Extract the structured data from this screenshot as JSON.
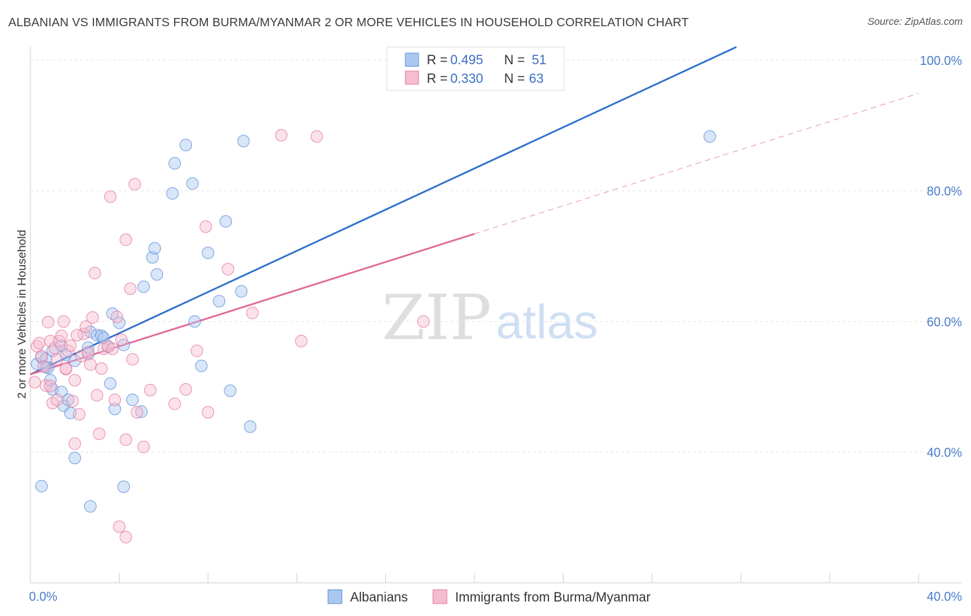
{
  "title": "ALBANIAN VS IMMIGRANTS FROM BURMA/MYANMAR 2 OR MORE VEHICLES IN HOUSEHOLD CORRELATION CHART",
  "source": "Source: ZipAtlas.com",
  "watermark": {
    "zip": "ZIP",
    "atlas": "atlas"
  },
  "legend": {
    "r_label": "R =",
    "n_label": "N =",
    "rows": [
      {
        "r": "0.495",
        "n": "51"
      },
      {
        "r": "0.330",
        "n": "63"
      }
    ]
  },
  "colors": {
    "blue_fill": "#aac8ef",
    "blue_stroke": "#5b8fd8",
    "blue_line": "#2d6fcc",
    "pink_fill": "#f6bcd0",
    "pink_stroke": "#e17ba0",
    "pink_line": "#e06898",
    "grid": "#e6e6e6",
    "tick_text": "#4a7cc9"
  },
  "chart_data": {
    "type": "scatter",
    "title": "ALBANIAN VS IMMIGRANTS FROM BURMA/MYANMAR 2 OR MORE VEHICLES IN HOUSEHOLD CORRELATION CHART",
    "xlabel": "",
    "ylabel": "2 or more Vehicles in Household",
    "xlim": [
      0,
      40
    ],
    "ylim": [
      20,
      102
    ],
    "x_tick_labels": [
      "0.0%",
      "40.0%"
    ],
    "y_ticks": [
      40,
      60,
      80,
      100
    ],
    "y_tick_labels": [
      "40.0%",
      "60.0%",
      "80.0%",
      "100.0%"
    ],
    "grid": true,
    "legend_position": "top-center",
    "series": [
      {
        "name": "Albanians",
        "color": "blue",
        "r": 0.495,
        "n": 51,
        "points": [
          [
            0.3,
            53.5
          ],
          [
            0.5,
            54.5
          ],
          [
            0.7,
            54.3
          ],
          [
            0.8,
            52.9
          ],
          [
            0.9,
            51.0
          ],
          [
            1.0,
            49.6
          ],
          [
            1.0,
            55.5
          ],
          [
            1.4,
            49.2
          ],
          [
            1.4,
            56.3
          ],
          [
            1.5,
            47.1
          ],
          [
            1.6,
            54.9
          ],
          [
            1.7,
            48.0
          ],
          [
            1.8,
            46.0
          ],
          [
            2.0,
            39.1
          ],
          [
            2.0,
            54.0
          ],
          [
            2.6,
            55.0
          ],
          [
            2.6,
            56.0
          ],
          [
            2.7,
            58.4
          ],
          [
            3.0,
            57.9
          ],
          [
            3.2,
            57.8
          ],
          [
            3.5,
            56.1
          ],
          [
            3.7,
            61.2
          ],
          [
            3.8,
            46.6
          ],
          [
            4.0,
            59.8
          ],
          [
            4.2,
            56.4
          ],
          [
            4.6,
            48.0
          ],
          [
            5.0,
            46.2
          ],
          [
            5.1,
            65.3
          ],
          [
            5.5,
            69.8
          ],
          [
            5.6,
            71.2
          ],
          [
            5.7,
            67.2
          ],
          [
            6.4,
            79.6
          ],
          [
            6.5,
            84.2
          ],
          [
            7.0,
            87.0
          ],
          [
            7.3,
            81.1
          ],
          [
            7.4,
            60.0
          ],
          [
            7.7,
            53.2
          ],
          [
            8.0,
            70.5
          ],
          [
            8.5,
            63.1
          ],
          [
            8.8,
            75.3
          ],
          [
            9.6,
            87.6
          ],
          [
            9.0,
            49.4
          ],
          [
            9.9,
            43.9
          ],
          [
            9.5,
            64.6
          ],
          [
            4.2,
            34.7
          ],
          [
            0.5,
            34.8
          ],
          [
            2.7,
            31.7
          ],
          [
            3.3,
            57.5
          ],
          [
            3.6,
            50.5
          ],
          [
            0.7,
            53.0
          ],
          [
            30.6,
            88.3
          ]
        ]
      },
      {
        "name": "Immigrants from Burma/Myanmar",
        "color": "pink",
        "r": 0.33,
        "n": 63,
        "points": [
          [
            0.2,
            50.7
          ],
          [
            0.3,
            56.2
          ],
          [
            0.4,
            56.7
          ],
          [
            0.5,
            54.7
          ],
          [
            0.6,
            53.1
          ],
          [
            0.7,
            50.2
          ],
          [
            0.8,
            59.9
          ],
          [
            0.9,
            57.0
          ],
          [
            1.0,
            47.5
          ],
          [
            1.1,
            55.9
          ],
          [
            1.2,
            54.2
          ],
          [
            1.3,
            57.0
          ],
          [
            1.4,
            57.8
          ],
          [
            1.5,
            60.0
          ],
          [
            1.6,
            52.7
          ],
          [
            1.7,
            55.5
          ],
          [
            1.8,
            56.3
          ],
          [
            1.9,
            47.8
          ],
          [
            2.0,
            41.3
          ],
          [
            2.0,
            51.0
          ],
          [
            2.2,
            45.8
          ],
          [
            2.3,
            54.7
          ],
          [
            2.4,
            58.1
          ],
          [
            2.5,
            59.2
          ],
          [
            2.6,
            55.3
          ],
          [
            2.7,
            53.4
          ],
          [
            2.8,
            60.6
          ],
          [
            2.9,
            67.4
          ],
          [
            3.0,
            48.7
          ],
          [
            3.1,
            42.8
          ],
          [
            3.2,
            52.8
          ],
          [
            3.3,
            55.8
          ],
          [
            3.5,
            56.2
          ],
          [
            3.6,
            79.1
          ],
          [
            3.8,
            48.0
          ],
          [
            3.9,
            60.7
          ],
          [
            4.1,
            57.2
          ],
          [
            4.3,
            72.5
          ],
          [
            4.5,
            65.0
          ],
          [
            4.6,
            54.2
          ],
          [
            4.8,
            46.1
          ],
          [
            5.1,
            40.8
          ],
          [
            5.4,
            49.5
          ],
          [
            4.7,
            81.0
          ],
          [
            6.5,
            47.4
          ],
          [
            7.0,
            49.6
          ],
          [
            7.5,
            55.5
          ],
          [
            7.9,
            74.5
          ],
          [
            8.0,
            46.1
          ],
          [
            8.9,
            68.0
          ],
          [
            10.0,
            61.3
          ],
          [
            11.3,
            88.5
          ],
          [
            12.2,
            57.0
          ],
          [
            12.9,
            88.3
          ],
          [
            17.7,
            60.0
          ],
          [
            4.0,
            28.6
          ],
          [
            4.3,
            27.0
          ],
          [
            1.2,
            48.0
          ],
          [
            2.1,
            57.9
          ],
          [
            0.9,
            50.1
          ],
          [
            4.3,
            41.9
          ],
          [
            1.6,
            52.8
          ],
          [
            3.7,
            55.8
          ]
        ]
      }
    ],
    "trend_lines": [
      {
        "series": "Albanians",
        "x": [
          0.0,
          31.8
        ],
        "y": [
          51.9,
          102.0
        ],
        "style": "solid"
      },
      {
        "series": "Immigrants from Burma/Myanmar",
        "x": [
          0.0,
          20.0
        ],
        "y": [
          51.9,
          73.4
        ],
        "style": "solid"
      },
      {
        "series": "Immigrants from Burma/Myanmar",
        "x": [
          20.0,
          40.0
        ],
        "y": [
          73.4,
          94.9
        ],
        "style": "dashed"
      }
    ]
  }
}
